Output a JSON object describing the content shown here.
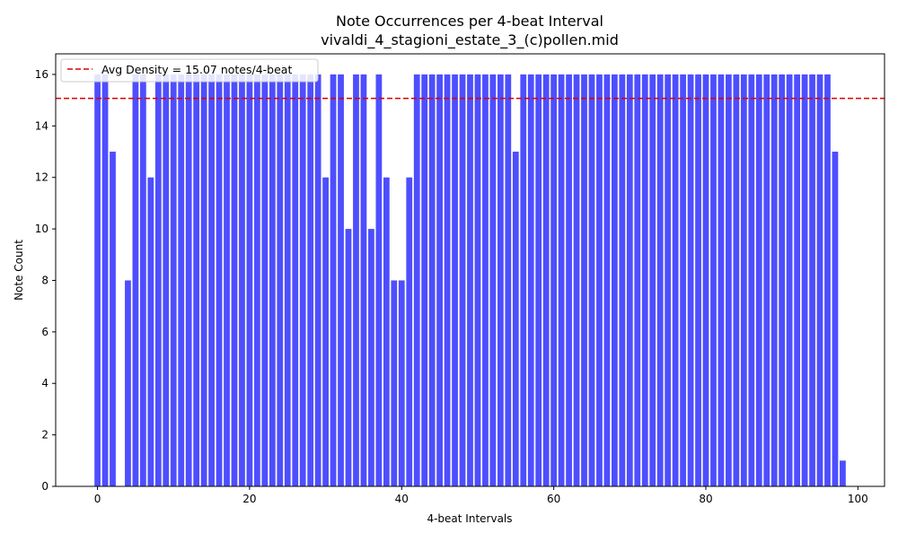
{
  "chart_data": {
    "type": "bar",
    "title": "Note Occurrences per 4-beat Interval",
    "subtitle": "vivaldi_4_stagioni_estate_3_(c)pollen.mid",
    "xlabel": "4-beat Intervals",
    "ylabel": "Note Count",
    "xlim": [
      -5.5,
      103.5
    ],
    "ylim": [
      0,
      16.8
    ],
    "xticks": [
      0,
      20,
      40,
      60,
      80,
      100
    ],
    "yticks": [
      0,
      2,
      4,
      6,
      8,
      10,
      12,
      14,
      16
    ],
    "x": [
      0,
      1,
      2,
      3,
      4,
      5,
      6,
      7,
      8,
      9,
      10,
      11,
      12,
      13,
      14,
      15,
      16,
      17,
      18,
      19,
      20,
      21,
      22,
      23,
      24,
      25,
      26,
      27,
      28,
      29,
      30,
      31,
      32,
      33,
      34,
      35,
      36,
      37,
      38,
      39,
      40,
      41,
      42,
      43,
      44,
      45,
      46,
      47,
      48,
      49,
      50,
      51,
      52,
      53,
      54,
      55,
      56,
      57,
      58,
      59,
      60,
      61,
      62,
      63,
      64,
      65,
      66,
      67,
      68,
      69,
      70,
      71,
      72,
      73,
      74,
      75,
      76,
      77,
      78,
      79,
      80,
      81,
      82,
      83,
      84,
      85,
      86,
      87,
      88,
      89,
      90,
      91,
      92,
      93,
      94,
      95,
      96,
      97,
      98
    ],
    "values": [
      16,
      16,
      13,
      0,
      8,
      16,
      16,
      12,
      16,
      16,
      16,
      16,
      16,
      16,
      16,
      16,
      16,
      16,
      16,
      16,
      16,
      16,
      16,
      16,
      16,
      16,
      16,
      16,
      16,
      16,
      12,
      16,
      16,
      10,
      16,
      16,
      10,
      16,
      12,
      8,
      8,
      12,
      16,
      16,
      16,
      16,
      16,
      16,
      16,
      16,
      16,
      16,
      16,
      16,
      16,
      13,
      16,
      16,
      16,
      16,
      16,
      16,
      16,
      16,
      16,
      16,
      16,
      16,
      16,
      16,
      16,
      16,
      16,
      16,
      16,
      16,
      16,
      16,
      16,
      16,
      16,
      16,
      16,
      16,
      16,
      16,
      16,
      16,
      16,
      16,
      16,
      16,
      16,
      16,
      16,
      16,
      16,
      13,
      1
    ],
    "bar_color": "#4444ff",
    "reference_line": {
      "value": 15.07,
      "color": "#dd0000",
      "style": "dashed",
      "label": "Avg Density = 15.07 notes/4-beat"
    },
    "legend_position": "top-left",
    "grid": false
  }
}
